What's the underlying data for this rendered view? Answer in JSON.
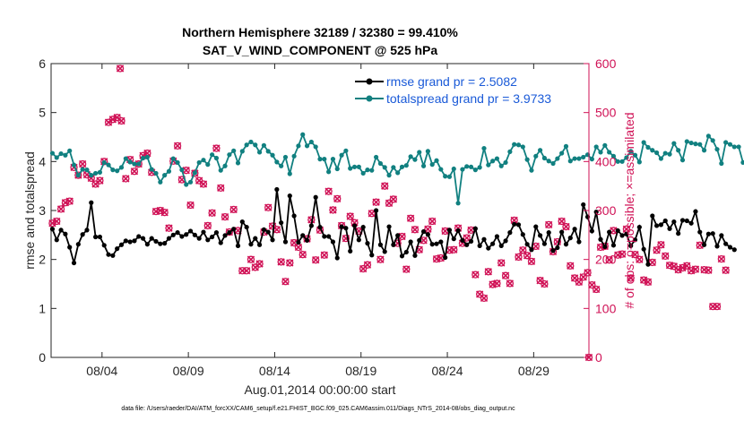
{
  "title_line1": "Northern Hemisphere 32189 / 32380 = 99.410%",
  "title_line2": "SAT_V_WIND_COMPONENT @ 525 hPa",
  "footer": "data file: /Users/raeder/DAI/ATM_forcXX/CAM6_setup/f.e21.FHIST_BGC.f09_025.CAM6assim.011/Diags_NTrS_2014-08/obs_diag_output.nc",
  "colors": {
    "rmse": "#000000",
    "spread": "#118080",
    "obs": "#d01256",
    "legend_text": "#1a5ad8"
  },
  "chart_data": {
    "type": "line",
    "title": "Northern Hemisphere 32189 / 32380 = 99.410%\nSAT_V_WIND_COMPONENT @ 525 hPa",
    "xlabel": "Aug.01,2014 00:00:00 start",
    "ylabel": "rmse and totalspread",
    "y2label": "# of obs: o=possible; ×=assimilated",
    "xlim": [
      0.55,
      31.7
    ],
    "ylim": [
      0,
      6
    ],
    "y2lim": [
      0,
      600
    ],
    "xticks": [
      3.5,
      8.5,
      13.5,
      18.5,
      23.5,
      28.5
    ],
    "xtick_labels": [
      "08/04",
      "08/09",
      "08/14",
      "08/19",
      "08/24",
      "08/29"
    ],
    "yticks": [
      0,
      1,
      2,
      3,
      4,
      5,
      6
    ],
    "y2ticks": [
      0,
      100,
      200,
      300,
      400,
      500,
      600
    ],
    "grid": false,
    "legend_position": "top-right",
    "x_step_days": 0.25,
    "x_first": 0.625,
    "series": [
      {
        "name": "rmse grand pr = 2.5082",
        "axis": "left",
        "marker": "filled-circle",
        "values": [
          2.62,
          2.4,
          2.6,
          2.52,
          2.25,
          1.93,
          2.31,
          2.51,
          2.6,
          3.16,
          2.46,
          2.46,
          2.29,
          2.1,
          2.08,
          2.22,
          2.3,
          2.38,
          2.36,
          2.38,
          2.47,
          2.43,
          2.31,
          2.43,
          2.37,
          2.32,
          2.33,
          2.43,
          2.5,
          2.55,
          2.47,
          2.51,
          2.58,
          2.5,
          2.43,
          2.56,
          2.4,
          2.46,
          2.55,
          2.34,
          2.49,
          2.55,
          2.62,
          2.28,
          2.77,
          2.66,
          2.31,
          2.43,
          2.3,
          2.61,
          2.56,
          2.4,
          3.43,
          2.75,
          2.36,
          3.3,
          2.89,
          2.35,
          2.49,
          2.39,
          2.69,
          3.27,
          2.66,
          2.47,
          2.47,
          2.36,
          2.03,
          2.67,
          2.64,
          2.17,
          2.69,
          2.4,
          2.66,
          2.33,
          2.09,
          3.0,
          2.3,
          2.16,
          2.67,
          2.3,
          2.49,
          2.07,
          2.15,
          2.36,
          2.08,
          2.39,
          2.57,
          2.51,
          2.31,
          2.32,
          2.36,
          2.04,
          2.6,
          2.42,
          2.59,
          2.39,
          2.3,
          2.37,
          2.63,
          2.28,
          2.41,
          2.23,
          2.32,
          2.47,
          2.28,
          2.38,
          2.55,
          2.72,
          2.71,
          2.51,
          2.31,
          2.2,
          2.67,
          2.49,
          2.32,
          2.55,
          2.18,
          2.24,
          2.56,
          2.31,
          2.44,
          2.62,
          2.36,
          3.12,
          2.87,
          2.58,
          2.97,
          2.41,
          2.26,
          2.56,
          2.29,
          2.59,
          2.49,
          2.52,
          2.28,
          2.4,
          2.66,
          2.21,
          1.9,
          2.89,
          2.69,
          2.71,
          2.79,
          2.63,
          2.77,
          2.53,
          2.8,
          2.79,
          2.74,
          2.98,
          2.56,
          2.3,
          2.52,
          2.53,
          2.27,
          2.49,
          2.32,
          2.25,
          2.2
        ]
      },
      {
        "name": "totalspread grand pr = 3.9733",
        "axis": "left",
        "marker": "filled-circle",
        "values": [
          4.17,
          4.08,
          4.16,
          4.13,
          4.22,
          3.93,
          3.72,
          3.84,
          3.83,
          3.72,
          3.76,
          3.78,
          3.98,
          3.93,
          3.83,
          3.81,
          3.88,
          4.06,
          3.99,
          3.95,
          3.95,
          4.07,
          4.09,
          3.84,
          3.76,
          3.58,
          3.72,
          3.8,
          4.06,
          3.98,
          3.83,
          3.53,
          3.58,
          3.77,
          3.98,
          4.03,
          3.94,
          4.14,
          4.07,
          3.82,
          3.91,
          4.14,
          4.22,
          3.97,
          4.21,
          4.34,
          4.4,
          4.34,
          4.19,
          4.33,
          4.21,
          4.13,
          3.99,
          3.91,
          4.09,
          3.75,
          4.11,
          4.32,
          4.55,
          4.32,
          4.4,
          4.3,
          4.05,
          4.05,
          3.79,
          4.05,
          3.85,
          4.13,
          4.22,
          3.86,
          3.89,
          3.89,
          3.76,
          3.83,
          3.82,
          4.09,
          3.96,
          3.88,
          3.72,
          3.88,
          3.77,
          3.89,
          3.92,
          4.1,
          4.04,
          4.19,
          3.91,
          4.21,
          3.94,
          4.02,
          3.84,
          3.7,
          3.69,
          3.85,
          3.15,
          3.84,
          3.9,
          3.89,
          3.83,
          3.88,
          4.27,
          3.93,
          4.01,
          4.06,
          3.91,
          3.98,
          4.2,
          4.35,
          4.34,
          4.3,
          4.04,
          3.82,
          4.11,
          4.23,
          4.07,
          4.01,
          3.96,
          4.06,
          4.17,
          4.31,
          4.01,
          4.06,
          4.06,
          4.09,
          4.14,
          4.05,
          4.3,
          4.19,
          4.33,
          4.19,
          4.11,
          4.0,
          4.0,
          4.08,
          4.21,
          4.13,
          3.99,
          4.39,
          4.29,
          4.23,
          4.18,
          4.06,
          4.17,
          4.15,
          4.37,
          4.23,
          4.03,
          4.41,
          4.38,
          4.36,
          4.35,
          4.23,
          4.52,
          4.43,
          4.25,
          3.96,
          4.39,
          4.35,
          4.3,
          4.3,
          3.98
        ]
      },
      {
        "name": "# of obs possible",
        "axis": "right",
        "marker": "open-circle",
        "values": [
          274,
          278,
          303,
          316,
          319,
          388,
          372,
          395,
          373,
          366,
          354,
          361,
          400,
          480,
          486,
          490,
          483,
          365,
          404,
          380,
          395,
          412,
          417,
          378,
          298,
          300,
          296,
          264,
          401,
          432,
          363,
          382,
          311,
          376,
          361,
          354,
          269,
          295,
          427,
          346,
          287,
          256,
          302,
          259,
          177,
          177,
          200,
          184,
          191,
          256,
          306,
          268,
          261,
          195,
          155,
          193,
          234,
          225,
          210,
          242,
          281,
          199,
          260,
          209,
          339,
          301,
          324,
          269,
          243,
          288,
          275,
          258,
          181,
          189,
          294,
          317,
          200,
          350,
          315,
          323,
          233,
          247,
          180,
          284,
          261,
          220,
          239,
          262,
          278,
          201,
          203,
          258,
          219,
          220,
          264,
          233,
          244,
          260,
          169,
          129,
          121,
          175,
          149,
          151,
          193,
          167,
          151,
          280,
          205,
          219,
          208,
          196,
          227,
          157,
          150,
          271,
          216,
          236,
          278,
          267,
          187,
          162,
          154,
          164,
          173,
          148,
          139,
          225,
          227,
          199,
          259,
          209,
          211,
          262,
          162,
          210,
          200,
          158,
          154,
          194,
          219,
          230,
          207,
          188,
          186,
          179,
          183,
          187,
          177,
          180,
          229,
          179,
          178,
          104,
          104,
          201,
          178
        ]
      },
      {
        "name": "# of obs assimilated",
        "axis": "right",
        "marker": "x",
        "values": [
          274,
          278,
          303,
          316,
          319,
          388,
          372,
          395,
          373,
          366,
          354,
          361,
          400,
          480,
          486,
          490,
          483,
          365,
          404,
          380,
          395,
          412,
          417,
          378,
          298,
          300,
          296,
          264,
          401,
          432,
          363,
          382,
          311,
          376,
          361,
          354,
          269,
          295,
          427,
          346,
          287,
          256,
          302,
          259,
          177,
          177,
          200,
          184,
          191,
          256,
          306,
          268,
          261,
          195,
          155,
          193,
          234,
          225,
          210,
          242,
          281,
          199,
          260,
          209,
          339,
          301,
          324,
          269,
          243,
          288,
          275,
          258,
          181,
          189,
          294,
          317,
          200,
          350,
          315,
          323,
          233,
          247,
          180,
          284,
          261,
          220,
          239,
          262,
          278,
          201,
          203,
          258,
          219,
          220,
          264,
          233,
          244,
          260,
          169,
          129,
          121,
          175,
          149,
          151,
          193,
          167,
          151,
          280,
          205,
          219,
          208,
          196,
          227,
          157,
          150,
          271,
          216,
          236,
          278,
          267,
          187,
          162,
          154,
          164,
          173,
          148,
          139,
          225,
          227,
          199,
          259,
          209,
          211,
          262,
          162,
          210,
          200,
          158,
          154,
          194,
          219,
          230,
          207,
          188,
          186,
          179,
          183,
          187,
          177,
          180,
          229,
          179,
          178,
          104,
          104,
          201,
          178
        ]
      }
    ],
    "extra_obs_points": [
      {
        "x": 4.55,
        "y": 590
      },
      {
        "x": 31.7,
        "y": 0
      }
    ]
  }
}
